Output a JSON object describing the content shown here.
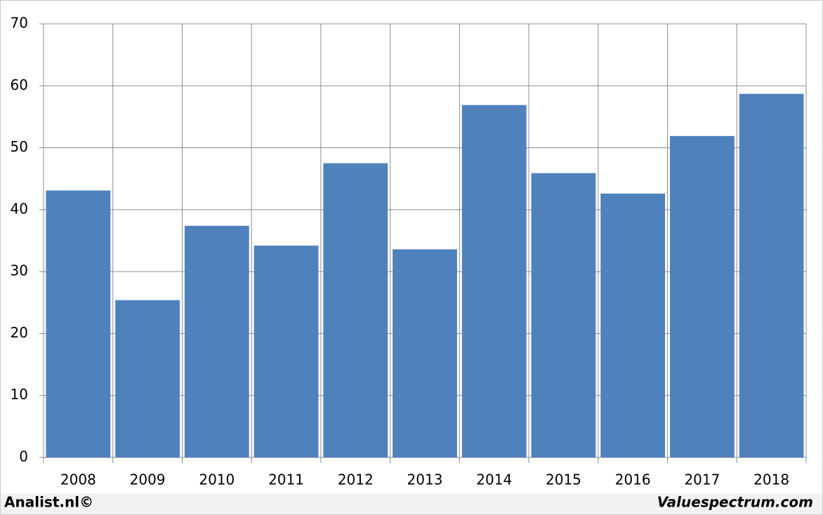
{
  "chart_data": {
    "type": "bar",
    "categories": [
      "2008",
      "2009",
      "2010",
      "2011",
      "2012",
      "2013",
      "2014",
      "2015",
      "2016",
      "2017",
      "2018"
    ],
    "values": [
      43.1,
      25.4,
      37.4,
      34.2,
      47.5,
      33.6,
      56.9,
      45.9,
      42.6,
      51.9,
      58.7
    ],
    "color": "#4f81bd",
    "ylim": [
      0,
      70
    ],
    "yticks": [
      0,
      10,
      20,
      30,
      40,
      50,
      60,
      70
    ],
    "grid": true,
    "source_left": "Analist.nl©",
    "source_right": "Valuespectrum.com"
  }
}
